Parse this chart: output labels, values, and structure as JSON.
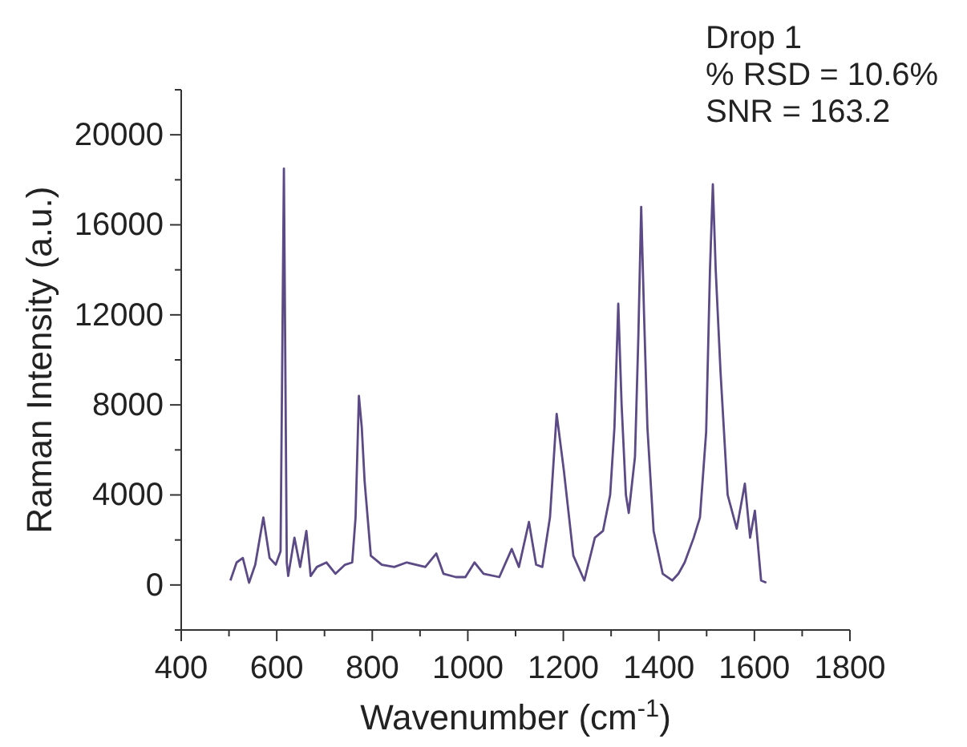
{
  "chart_data": {
    "type": "line",
    "xlabel": "Wavenumber (cm$^{-1}$)",
    "ylabel": "Raman Intensity (a.u.)",
    "annotations": [
      "Drop 1",
      "% RSD = 10.6%",
      "SNR = 163.2"
    ],
    "xlim": [
      400,
      1800
    ],
    "ylim": [
      -2000,
      22000
    ],
    "xticks": [
      400,
      {
        "value": 500,
        "label": null
      },
      600,
      {
        "value": 700,
        "label": null
      },
      800,
      {
        "value": 900,
        "label": null
      },
      1000,
      {
        "value": 1100,
        "label": null
      },
      1200,
      {
        "value": 1300,
        "label": null
      },
      1400,
      {
        "value": 1500,
        "label": null
      },
      1600,
      {
        "value": 1700,
        "label": null
      },
      1800
    ],
    "yticks": [
      {
        "value": -2000,
        "label": null
      },
      0,
      {
        "value": 2000,
        "label": null
      },
      4000,
      {
        "value": 6000,
        "label": null
      },
      8000,
      {
        "value": 10000,
        "label": null
      },
      12000,
      {
        "value": 14000,
        "label": null
      },
      16000,
      {
        "value": 18000,
        "label": null
      },
      20000,
      {
        "value": 22000,
        "label": null
      }
    ],
    "grid": false,
    "marker": "none",
    "line_style": "solid",
    "series": [
      {
        "color": "#5b4a86",
        "x": [
          503,
          516,
          529,
          542,
          555,
          572,
          585,
          598,
          608,
          615,
          621,
          624,
          637,
          649,
          662,
          671,
          684,
          704,
          723,
          743,
          758,
          765,
          772,
          778,
          784,
          797,
          820,
          846,
          872,
          911,
          934,
          949,
          975,
          995,
          1014,
          1033,
          1066,
          1092,
          1107,
          1128,
          1143,
          1156,
          1172,
          1186,
          1201,
          1221,
          1244,
          1266,
          1283,
          1298,
          1307,
          1315,
          1322,
          1331,
          1337,
          1350,
          1357,
          1363,
          1369,
          1376,
          1389,
          1408,
          1428,
          1441,
          1454,
          1473,
          1486,
          1499,
          1507,
          1513,
          1519,
          1529,
          1544,
          1563,
          1580,
          1591,
          1601,
          1614,
          1625
        ],
        "values": [
          200,
          1000,
          1200,
          100,
          900,
          3000,
          1200,
          900,
          1500,
          18500,
          1000,
          400,
          2100,
          800,
          2400,
          400,
          800,
          1000,
          500,
          900,
          1000,
          3000,
          8400,
          7000,
          4600,
          1300,
          900,
          800,
          1000,
          800,
          1400,
          500,
          350,
          350,
          1000,
          500,
          350,
          1600,
          800,
          2800,
          900,
          800,
          3000,
          7600,
          5100,
          1300,
          200,
          2100,
          2400,
          4000,
          7000,
          12500,
          8000,
          4000,
          3200,
          5700,
          11000,
          16800,
          12000,
          7000,
          2400,
          500,
          200,
          500,
          1000,
          2100,
          3000,
          6800,
          14000,
          17800,
          14000,
          9500,
          4000,
          2500,
          4500,
          2100,
          3300,
          200,
          100
        ]
      }
    ]
  }
}
